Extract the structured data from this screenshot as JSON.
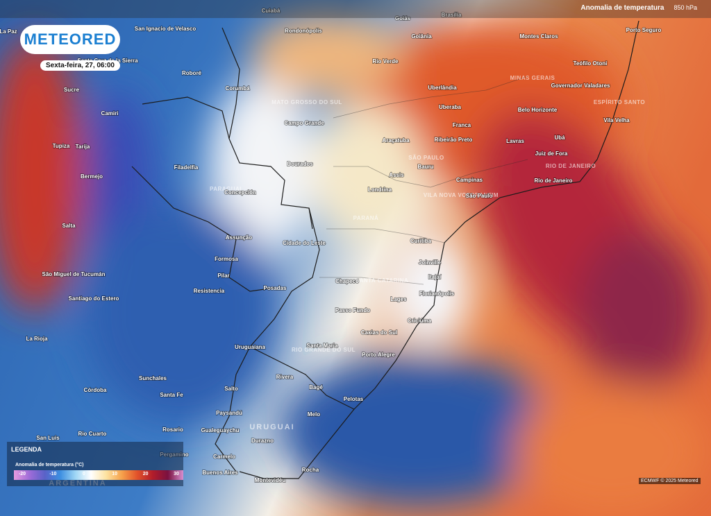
{
  "header": {
    "layer": "Anomalia de temperatura",
    "level": "850 hPa"
  },
  "logo": "METEORED",
  "date": "Sexta-feira, 27, 06:00",
  "legend": {
    "title": "LEGENDA",
    "subtitle": "Anomalia de temperatura (°C)",
    "ticks": [
      -20,
      -10,
      0,
      10,
      20,
      30
    ]
  },
  "credit": "ECMWF © 2025 Meteored",
  "map": {
    "labels": [
      "Cuiabá",
      "Goiás",
      "Brasília",
      "Goiânia",
      "Rondonópolis",
      "San Ignacio de Velasco",
      "La Paz",
      "Montes Claros",
      "Porto Seguro",
      "Rio Verde",
      "Teófilo Otoni",
      "Santa Cruz de la Sierra",
      "Roboré",
      "Sucre",
      "Uberlândia",
      "MINAS GERAIS",
      "Governador Valadares",
      "Corumbá",
      "MATO GROSSO DO SUL",
      "ESPÍRITO SANTO",
      "Uberaba",
      "Belo Horizonte",
      "Camiri",
      "Campo Grande",
      "Franca",
      "Vila Velha",
      "Araçatuba",
      "Ribeirão Preto",
      "Lavras",
      "Ubá",
      "Tupiza",
      "Tarija",
      "Juiz de Fora",
      "SÃO PAULO",
      "Bauru",
      "RIO DE JANEIRO",
      "Filadelfia",
      "Dourados",
      "Assis",
      "Campinas",
      "Rio de Janeiro",
      "Bermejo",
      "PARAGUAI",
      "Londrina",
      "VILA NOVA VOTORANTIM",
      "São Paulo",
      "Concepción",
      "PARANÁ",
      "Salta",
      "Assunção",
      "Cidade do Leste",
      "Curitiba",
      "Formosa",
      "Joinville",
      "São Miguel de Tucumán",
      "Pilar",
      "Itajaí",
      "Chapecó",
      "SANTA CATARINA",
      "Posadas",
      "Resistencia",
      "Florianópolis",
      "Santiago do Estero",
      "Lages",
      "Passo Fundo",
      "Criciúma",
      "Caxias do Sul",
      "La Rioja",
      "Uruguaiana",
      "Santa Maria",
      "RIO GRANDE DO SUL",
      "Porto Alegre",
      "Sunchales",
      "Rivera",
      "Bagé",
      "Córdoba",
      "Salto",
      "Santa Fe",
      "Pelotas",
      "Paysandú",
      "Melo",
      "URUGUAI",
      "Rosario",
      "Gualeguaychu",
      "Rio Cuarto",
      "San Luis",
      "Durazno",
      "Pergamino",
      "Carmelo",
      "Buenos Aires",
      "Rocha",
      "Montevidéu",
      "ARGENTINA"
    ]
  }
}
